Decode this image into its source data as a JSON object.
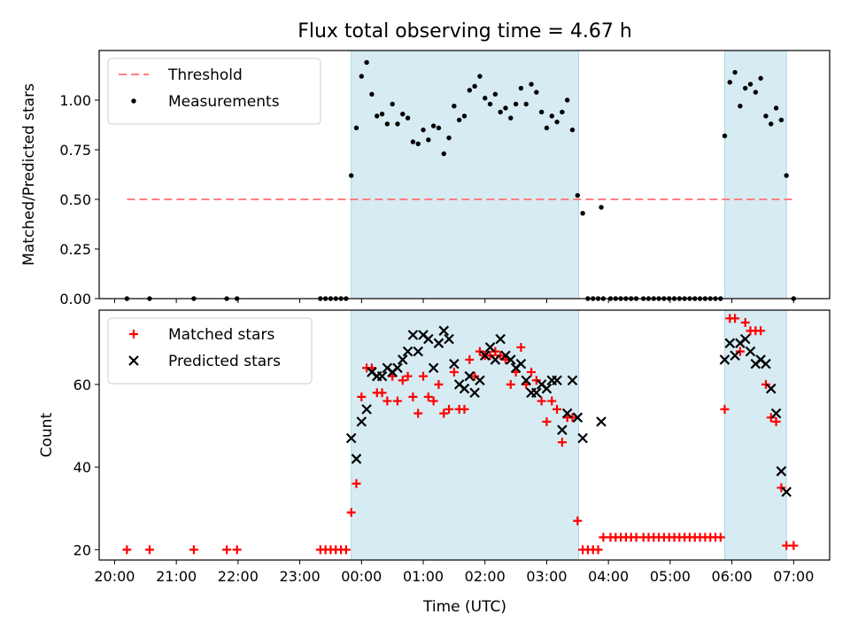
{
  "figure": {
    "title": "Flux total observing time = 4.67 h",
    "xlabel": "Time (UTC)"
  },
  "colors": {
    "band": "#add8e6",
    "threshold": "#ff7f7f",
    "measurements": "#000000",
    "matched": "#ff0000",
    "predicted": "#000000"
  },
  "chart_data": [
    {
      "type": "scatter",
      "ylabel": "Matched/Predicted stars",
      "xlim": [
        "19:45",
        "07:35"
      ],
      "ylim": [
        0,
        1.25
      ],
      "grid": false,
      "legend_position": "top-left",
      "shaded_intervals": [
        [
          "23:50",
          "03:31"
        ],
        [
          "05:53",
          "06:53"
        ]
      ],
      "x_ticks": [
        "20:00",
        "21:00",
        "22:00",
        "23:00",
        "00:00",
        "01:00",
        "02:00",
        "03:00",
        "04:00",
        "05:00",
        "06:00",
        "07:00"
      ],
      "y_ticks": [
        "0.00",
        "0.25",
        "0.50",
        "0.75",
        "1.00"
      ],
      "threshold": {
        "name": "Threshold",
        "value": 0.5,
        "x_range": [
          "20:12",
          "07:02"
        ]
      },
      "series": [
        {
          "name": "Measurements",
          "marker": "dot",
          "points": [
            [
              "20:12",
              0
            ],
            [
              "20:34",
              0
            ],
            [
              "21:17",
              0
            ],
            [
              "21:49",
              0
            ],
            [
              "21:59",
              0
            ],
            [
              "23:20",
              0
            ],
            [
              "23:25",
              0
            ],
            [
              "23:30",
              0
            ],
            [
              "23:35",
              0
            ],
            [
              "23:40",
              0
            ],
            [
              "23:45",
              0
            ],
            [
              "23:50",
              0.62
            ],
            [
              "23:55",
              0.86
            ],
            [
              "00:00",
              1.12
            ],
            [
              "00:05",
              1.19
            ],
            [
              "00:10",
              1.03
            ],
            [
              "00:15",
              0.92
            ],
            [
              "00:20",
              0.93
            ],
            [
              "00:25",
              0.88
            ],
            [
              "00:30",
              0.98
            ],
            [
              "00:35",
              0.88
            ],
            [
              "00:40",
              0.93
            ],
            [
              "00:45",
              0.91
            ],
            [
              "00:50",
              0.79
            ],
            [
              "00:55",
              0.78
            ],
            [
              "01:00",
              0.85
            ],
            [
              "01:05",
              0.8
            ],
            [
              "01:10",
              0.87
            ],
            [
              "01:15",
              0.86
            ],
            [
              "01:20",
              0.73
            ],
            [
              "01:25",
              0.81
            ],
            [
              "01:30",
              0.97
            ],
            [
              "01:35",
              0.9
            ],
            [
              "01:40",
              0.92
            ],
            [
              "01:45",
              1.05
            ],
            [
              "01:50",
              1.07
            ],
            [
              "01:55",
              1.12
            ],
            [
              "02:00",
              1.01
            ],
            [
              "02:05",
              0.98
            ],
            [
              "02:10",
              1.03
            ],
            [
              "02:15",
              0.94
            ],
            [
              "02:20",
              0.96
            ],
            [
              "02:25",
              0.91
            ],
            [
              "02:30",
              0.98
            ],
            [
              "02:35",
              1.06
            ],
            [
              "02:40",
              0.98
            ],
            [
              "02:45",
              1.08
            ],
            [
              "02:50",
              1.04
            ],
            [
              "02:55",
              0.94
            ],
            [
              "03:00",
              0.86
            ],
            [
              "03:05",
              0.92
            ],
            [
              "03:10",
              0.89
            ],
            [
              "03:15",
              0.94
            ],
            [
              "03:20",
              1.0
            ],
            [
              "03:25",
              0.85
            ],
            [
              "03:30",
              0.52
            ],
            [
              "03:35",
              0.43
            ],
            [
              "03:40",
              0
            ],
            [
              "03:45",
              0
            ],
            [
              "03:50",
              0
            ],
            [
              "03:53",
              0.46
            ],
            [
              "03:55",
              0
            ],
            [
              "04:02",
              0
            ],
            [
              "04:07",
              0
            ],
            [
              "04:12",
              0
            ],
            [
              "04:17",
              0
            ],
            [
              "04:22",
              0
            ],
            [
              "04:27",
              0
            ],
            [
              "04:34",
              0
            ],
            [
              "04:39",
              0
            ],
            [
              "04:44",
              0
            ],
            [
              "04:49",
              0
            ],
            [
              "04:54",
              0
            ],
            [
              "04:59",
              0
            ],
            [
              "05:04",
              0
            ],
            [
              "05:09",
              0
            ],
            [
              "05:14",
              0
            ],
            [
              "05:19",
              0
            ],
            [
              "05:24",
              0
            ],
            [
              "05:29",
              0
            ],
            [
              "05:34",
              0
            ],
            [
              "05:39",
              0
            ],
            [
              "05:44",
              0
            ],
            [
              "05:49",
              0
            ],
            [
              "05:53",
              0.82
            ],
            [
              "05:58",
              1.09
            ],
            [
              "06:03",
              1.14
            ],
            [
              "06:08",
              0.97
            ],
            [
              "06:13",
              1.06
            ],
            [
              "06:18",
              1.08
            ],
            [
              "06:23",
              1.04
            ],
            [
              "06:28",
              1.11
            ],
            [
              "06:33",
              0.92
            ],
            [
              "06:38",
              0.88
            ],
            [
              "06:43",
              0.96
            ],
            [
              "06:48",
              0.9
            ],
            [
              "06:53",
              0.62
            ],
            [
              "07:00",
              0
            ]
          ]
        }
      ]
    },
    {
      "type": "scatter",
      "ylabel": "Count",
      "xlim": [
        "19:45",
        "07:35"
      ],
      "ylim": [
        17.5,
        78
      ],
      "grid": false,
      "legend_position": "top-left",
      "shaded_intervals": [
        [
          "23:50",
          "03:31"
        ],
        [
          "05:53",
          "06:53"
        ]
      ],
      "x_ticks": [
        "20:00",
        "21:00",
        "22:00",
        "23:00",
        "00:00",
        "01:00",
        "02:00",
        "03:00",
        "04:00",
        "05:00",
        "06:00",
        "07:00"
      ],
      "y_ticks": [
        "20",
        "40",
        "60"
      ],
      "series": [
        {
          "name": "Matched stars",
          "marker": "plus",
          "points": [
            [
              "20:12",
              20
            ],
            [
              "20:34",
              20
            ],
            [
              "21:17",
              20
            ],
            [
              "21:49",
              20
            ],
            [
              "21:59",
              20
            ],
            [
              "23:20",
              20
            ],
            [
              "23:25",
              20
            ],
            [
              "23:30",
              20
            ],
            [
              "23:35",
              20
            ],
            [
              "23:40",
              20
            ],
            [
              "23:45",
              20
            ],
            [
              "23:50",
              29
            ],
            [
              "23:55",
              36
            ],
            [
              "00:00",
              57
            ],
            [
              "00:05",
              64
            ],
            [
              "00:10",
              64
            ],
            [
              "00:15",
              58
            ],
            [
              "00:20",
              58
            ],
            [
              "00:25",
              56
            ],
            [
              "00:30",
              62
            ],
            [
              "00:35",
              56
            ],
            [
              "00:40",
              61
            ],
            [
              "00:45",
              62
            ],
            [
              "00:50",
              57
            ],
            [
              "00:55",
              53
            ],
            [
              "01:00",
              62
            ],
            [
              "01:05",
              57
            ],
            [
              "01:10",
              56
            ],
            [
              "01:15",
              60
            ],
            [
              "01:20",
              53
            ],
            [
              "01:25",
              54
            ],
            [
              "01:30",
              63
            ],
            [
              "01:35",
              54
            ],
            [
              "01:40",
              54
            ],
            [
              "01:45",
              66
            ],
            [
              "01:50",
              62
            ],
            [
              "01:55",
              68
            ],
            [
              "02:00",
              67
            ],
            [
              "02:05",
              67
            ],
            [
              "02:10",
              68
            ],
            [
              "02:15",
              67
            ],
            [
              "02:20",
              66
            ],
            [
              "02:25",
              60
            ],
            [
              "02:30",
              63
            ],
            [
              "02:35",
              69
            ],
            [
              "02:40",
              60
            ],
            [
              "02:45",
              63
            ],
            [
              "02:50",
              61
            ],
            [
              "02:55",
              56
            ],
            [
              "03:00",
              51
            ],
            [
              "03:05",
              56
            ],
            [
              "03:10",
              54
            ],
            [
              "03:15",
              46
            ],
            [
              "03:20",
              52
            ],
            [
              "03:25",
              52
            ],
            [
              "03:30",
              27
            ],
            [
              "03:35",
              20
            ],
            [
              "03:40",
              20
            ],
            [
              "03:45",
              20
            ],
            [
              "03:50",
              20
            ],
            [
              "03:55",
              23
            ],
            [
              "04:02",
              23
            ],
            [
              "04:07",
              23
            ],
            [
              "04:12",
              23
            ],
            [
              "04:17",
              23
            ],
            [
              "04:22",
              23
            ],
            [
              "04:27",
              23
            ],
            [
              "04:34",
              23
            ],
            [
              "04:39",
              23
            ],
            [
              "04:44",
              23
            ],
            [
              "04:49",
              23
            ],
            [
              "04:54",
              23
            ],
            [
              "04:59",
              23
            ],
            [
              "05:04",
              23
            ],
            [
              "05:09",
              23
            ],
            [
              "05:14",
              23
            ],
            [
              "05:19",
              23
            ],
            [
              "05:24",
              23
            ],
            [
              "05:29",
              23
            ],
            [
              "05:34",
              23
            ],
            [
              "05:39",
              23
            ],
            [
              "05:44",
              23
            ],
            [
              "05:49",
              23
            ],
            [
              "05:53",
              54
            ],
            [
              "05:58",
              76
            ],
            [
              "06:03",
              76
            ],
            [
              "06:08",
              68
            ],
            [
              "06:13",
              75
            ],
            [
              "06:18",
              73
            ],
            [
              "06:23",
              73
            ],
            [
              "06:28",
              73
            ],
            [
              "06:33",
              60
            ],
            [
              "06:38",
              52
            ],
            [
              "06:43",
              51
            ],
            [
              "06:48",
              35
            ],
            [
              "06:53",
              21
            ],
            [
              "07:00",
              21
            ]
          ]
        },
        {
          "name": "Predicted stars",
          "marker": "x",
          "points": [
            [
              "23:50",
              47
            ],
            [
              "23:55",
              42
            ],
            [
              "00:00",
              51
            ],
            [
              "00:05",
              54
            ],
            [
              "00:10",
              63
            ],
            [
              "00:15",
              62
            ],
            [
              "00:20",
              62
            ],
            [
              "00:25",
              64
            ],
            [
              "00:30",
              63
            ],
            [
              "00:35",
              64
            ],
            [
              "00:40",
              66
            ],
            [
              "00:45",
              68
            ],
            [
              "00:50",
              72
            ],
            [
              "00:55",
              68
            ],
            [
              "01:00",
              72
            ],
            [
              "01:05",
              71
            ],
            [
              "01:10",
              64
            ],
            [
              "01:15",
              70
            ],
            [
              "01:20",
              73
            ],
            [
              "01:25",
              71
            ],
            [
              "01:30",
              65
            ],
            [
              "01:35",
              60
            ],
            [
              "01:40",
              59
            ],
            [
              "01:45",
              62
            ],
            [
              "01:50",
              58
            ],
            [
              "01:55",
              61
            ],
            [
              "02:00",
              67
            ],
            [
              "02:05",
              69
            ],
            [
              "02:10",
              66
            ],
            [
              "02:15",
              71
            ],
            [
              "02:20",
              67
            ],
            [
              "02:25",
              66
            ],
            [
              "02:30",
              64
            ],
            [
              "02:35",
              65
            ],
            [
              "02:40",
              61
            ],
            [
              "02:45",
              58
            ],
            [
              "02:50",
              58
            ],
            [
              "02:55",
              60
            ],
            [
              "03:00",
              59
            ],
            [
              "03:05",
              61
            ],
            [
              "03:10",
              61
            ],
            [
              "03:15",
              49
            ],
            [
              "03:20",
              53
            ],
            [
              "03:25",
              61
            ],
            [
              "03:30",
              52
            ],
            [
              "03:35",
              47
            ],
            [
              "03:53",
              51
            ],
            [
              "05:53",
              66
            ],
            [
              "05:58",
              70
            ],
            [
              "06:03",
              67
            ],
            [
              "06:08",
              70
            ],
            [
              "06:13",
              71
            ],
            [
              "06:18",
              68
            ],
            [
              "06:23",
              65
            ],
            [
              "06:28",
              66
            ],
            [
              "06:33",
              65
            ],
            [
              "06:38",
              59
            ],
            [
              "06:43",
              53
            ],
            [
              "06:48",
              39
            ],
            [
              "06:53",
              34
            ]
          ]
        }
      ]
    }
  ]
}
